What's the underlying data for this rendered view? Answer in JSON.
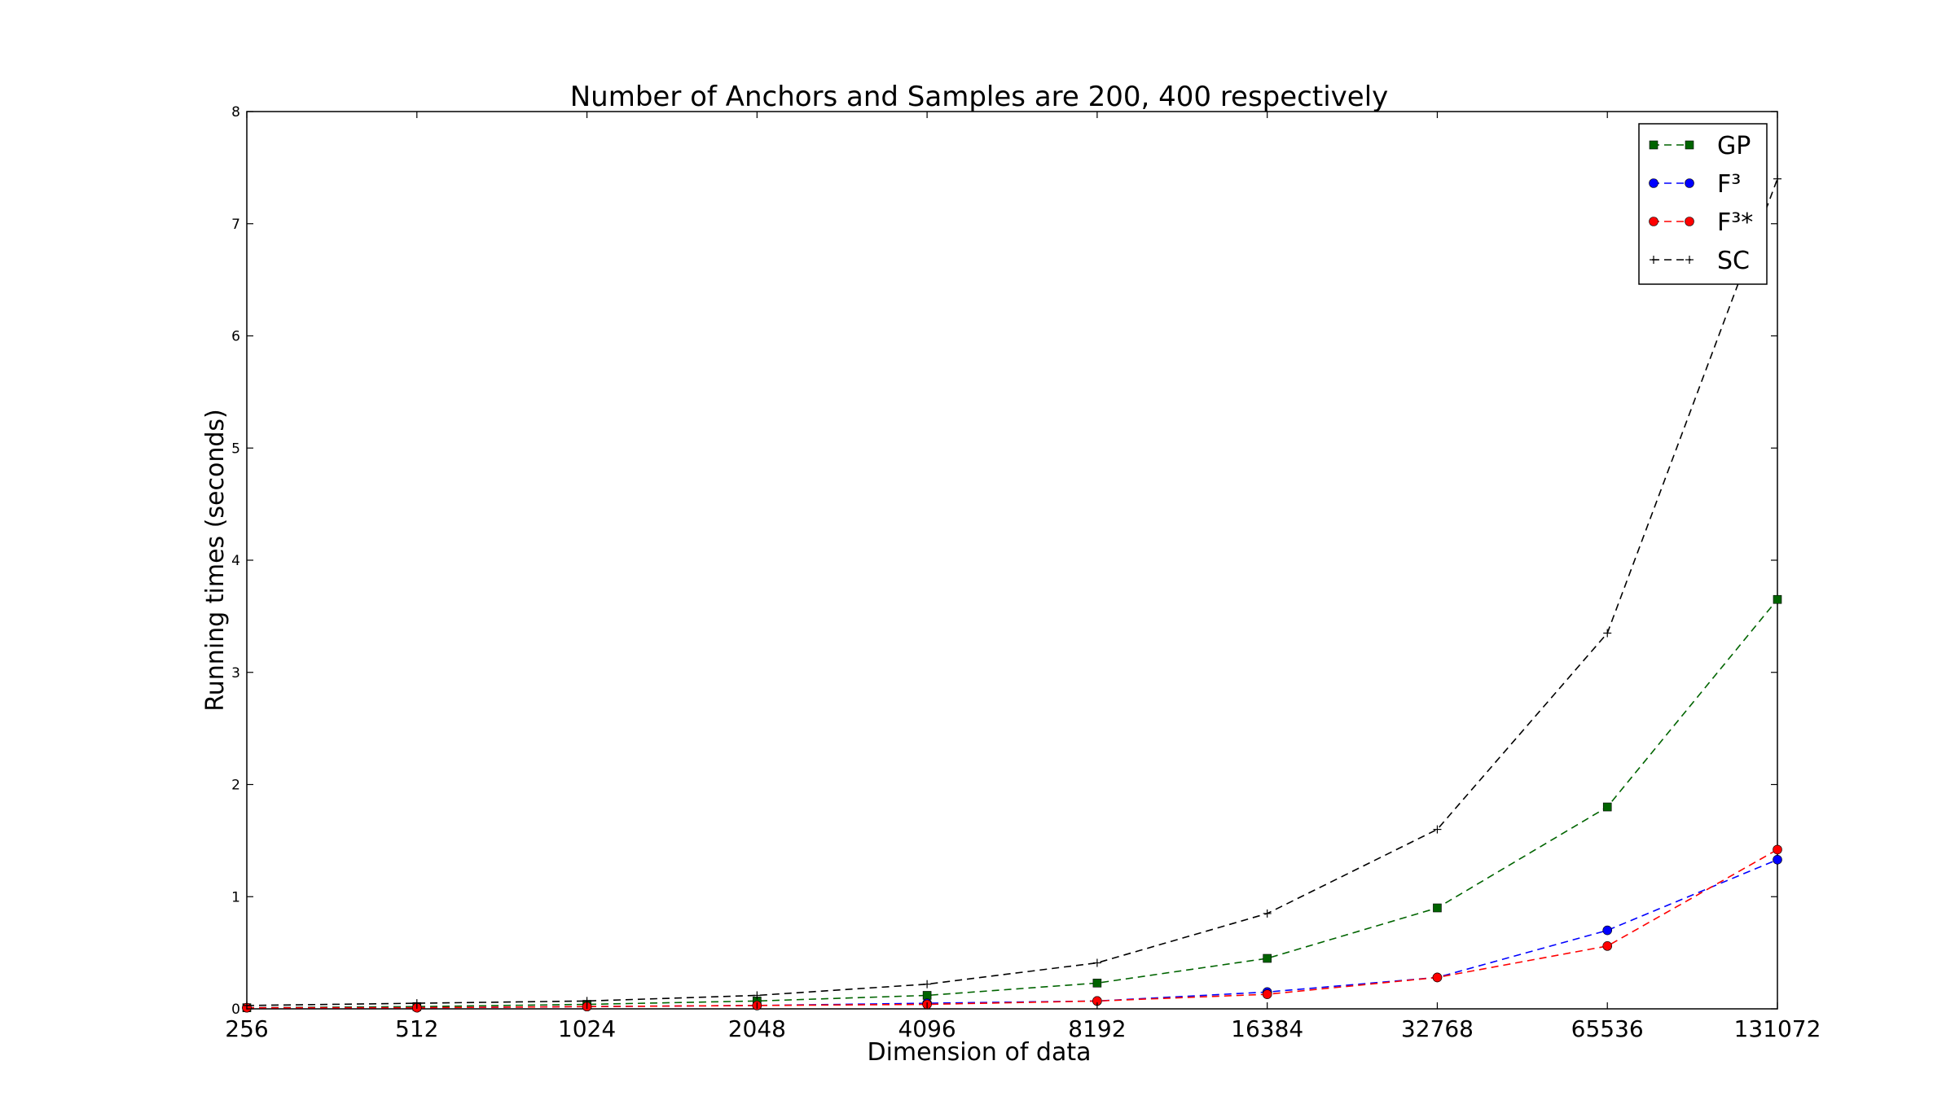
{
  "chart_data": {
    "type": "line",
    "title": "Number of Anchors and Samples are 200, 400 respectively",
    "xlabel": "Dimension of data",
    "ylabel": "Running times (seconds)",
    "x": [
      "256",
      "512",
      "1024",
      "2048",
      "4096",
      "8192",
      "16384",
      "32768",
      "65536",
      "131072"
    ],
    "ylim": [
      0,
      8
    ],
    "yticks": [
      "0",
      "1",
      "2",
      "3",
      "4",
      "5",
      "6",
      "7",
      "8"
    ],
    "grid": false,
    "legend_position": "top-right",
    "series": [
      {
        "name": "GP",
        "color": "#006400",
        "marker": "square",
        "values": [
          0.01,
          0.02,
          0.04,
          0.07,
          0.12,
          0.23,
          0.45,
          0.9,
          1.8,
          3.65
        ]
      },
      {
        "name": "F³",
        "color": "#0000ff",
        "marker": "circle",
        "values": [
          0.01,
          0.01,
          0.02,
          0.03,
          0.05,
          0.07,
          0.15,
          0.28,
          0.7,
          1.33
        ]
      },
      {
        "name": "F³*",
        "color": "#ff0000",
        "marker": "circle",
        "values": [
          0.01,
          0.01,
          0.02,
          0.03,
          0.04,
          0.07,
          0.13,
          0.28,
          0.56,
          1.42
        ]
      },
      {
        "name": "SC",
        "color": "#000000",
        "marker": "plus",
        "values": [
          0.03,
          0.05,
          0.07,
          0.12,
          0.22,
          0.41,
          0.85,
          1.6,
          3.35,
          7.4
        ]
      }
    ]
  }
}
